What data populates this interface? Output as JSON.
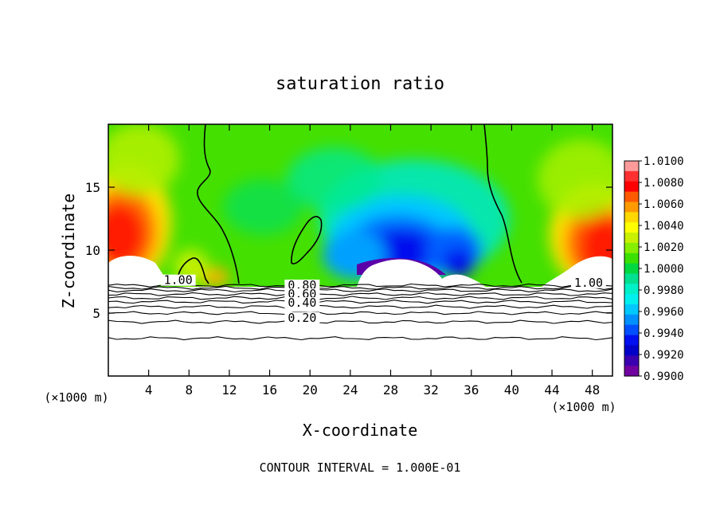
{
  "chart_data": {
    "type": "heatmap",
    "title": "saturation ratio",
    "xlabel": "X-coordinate",
    "ylabel": "Z-coordinate",
    "x_unit_left": "(×1000 m)",
    "x_unit_right": "(×1000 m)",
    "footer": "CONTOUR INTERVAL = 1.000E-01",
    "xlim": [
      0,
      50
    ],
    "ylim": [
      0,
      20
    ],
    "x_ticks": [
      4,
      8,
      12,
      16,
      20,
      24,
      28,
      32,
      36,
      40,
      44,
      48
    ],
    "y_ticks": [
      5,
      10,
      15
    ],
    "colorbar": {
      "range": [
        0.99,
        1.01
      ],
      "labels": [
        "1.0100",
        "1.0080",
        "1.0060",
        "1.0040",
        "1.0020",
        "1.0000",
        "0.9980",
        "0.9960",
        "0.9940",
        "0.9920",
        "0.9900"
      ],
      "colors": [
        "#ff9a9a",
        "#ff3030",
        "#ff0000",
        "#ff5a00",
        "#ff9a00",
        "#ffd800",
        "#ffff00",
        "#c8f000",
        "#86ee00",
        "#3ce000",
        "#00d840",
        "#00e090",
        "#00f0c8",
        "#00f0f0",
        "#00c8ff",
        "#0090ff",
        "#0050ff",
        "#0010ee",
        "#0000c8",
        "#3a00b0",
        "#7000a0"
      ]
    },
    "contour_labels": [
      {
        "text": "1.00",
        "x": 5.5,
        "y": 7.3
      },
      {
        "text": "1.00",
        "x": 46.2,
        "y": 7.1
      },
      {
        "text": "0.80",
        "x": 17.8,
        "y": 6.9
      },
      {
        "text": "0.60",
        "x": 17.8,
        "y": 6.2
      },
      {
        "text": "0.40",
        "x": 17.8,
        "y": 5.5
      },
      {
        "text": "0.20",
        "x": 17.8,
        "y": 4.3
      }
    ],
    "lower_contours": [
      {
        "value": 1.0,
        "z": 7.2
      },
      {
        "value": 0.9,
        "z": 7.0
      },
      {
        "value": 0.8,
        "z": 6.8
      },
      {
        "value": 0.7,
        "z": 6.5
      },
      {
        "value": 0.6,
        "z": 6.2
      },
      {
        "value": 0.5,
        "z": 5.9
      },
      {
        "value": 0.4,
        "z": 5.5
      },
      {
        "value": 0.3,
        "z": 5.0
      },
      {
        "value": 0.2,
        "z": 4.3
      },
      {
        "value": 0.1,
        "z": 3.0
      }
    ]
  }
}
